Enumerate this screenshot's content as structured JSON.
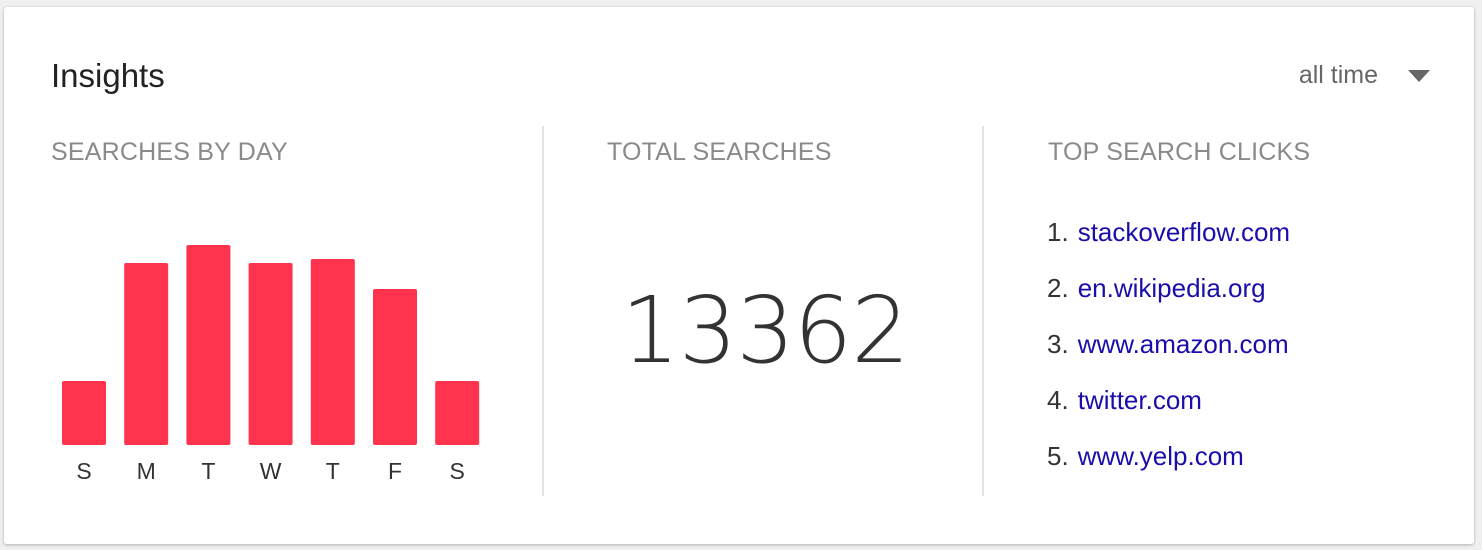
{
  "header": {
    "title": "Insights",
    "range_label": "all time"
  },
  "sections": {
    "searches_by_day": "SEARCHES BY DAY",
    "total_searches": "TOTAL SEARCHES",
    "top_search_clicks": "TOP SEARCH CLICKS"
  },
  "total": "13362",
  "colors": {
    "bar": "#ff334d",
    "link": "#1a0dab"
  },
  "chart_data": {
    "type": "bar",
    "categories": [
      "S",
      "M",
      "T",
      "W",
      "T",
      "F",
      "S"
    ],
    "values": [
      32,
      91,
      100,
      91,
      93,
      78,
      32
    ],
    "ylim": [
      0,
      100
    ],
    "grid": false
  },
  "top_clicks": [
    {
      "rank": "1.",
      "site": "stackoverflow.com"
    },
    {
      "rank": "2.",
      "site": "en.wikipedia.org"
    },
    {
      "rank": "3.",
      "site": "www.amazon.com"
    },
    {
      "rank": "4.",
      "site": "twitter.com"
    },
    {
      "rank": "5.",
      "site": "www.yelp.com"
    }
  ]
}
